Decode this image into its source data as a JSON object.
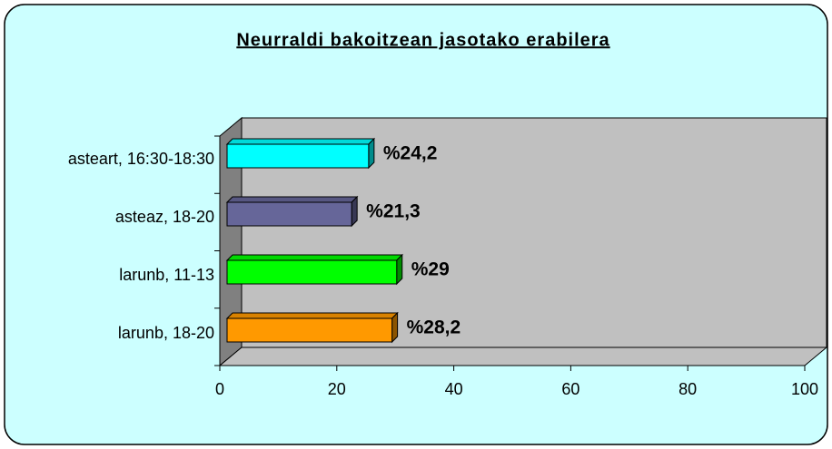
{
  "chart_data": {
    "type": "bar",
    "orientation": "horizontal",
    "title": "Neurraldi bakoitzean jasotako erabilera",
    "categories": [
      "asteart, 16:30-18:30",
      "asteaz, 18-20",
      "larunb, 11-13",
      "larunb, 18-20"
    ],
    "values": [
      24.2,
      21.3,
      29,
      28.2
    ],
    "value_labels": [
      "%24,2",
      "%21,3",
      "%29",
      "%28,2"
    ],
    "colors": [
      "#00ffff",
      "#666699",
      "#00ff00",
      "#ff9900"
    ],
    "xlim": [
      0,
      100
    ],
    "xticks": [
      0,
      20,
      40,
      60,
      80,
      100
    ],
    "grid": false
  }
}
